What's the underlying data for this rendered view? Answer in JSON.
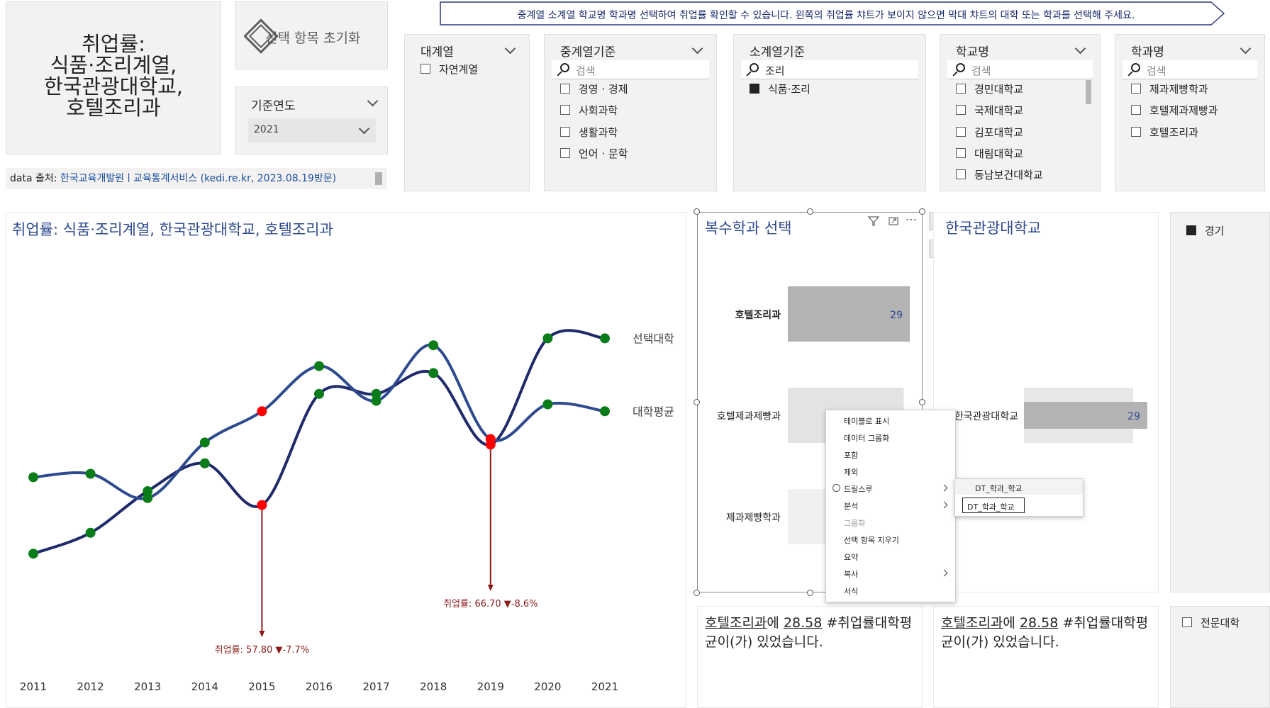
{
  "title_card": {
    "line1": "취업률:",
    "line2": "식품·조리계열,",
    "line3": "한국관광대학교,",
    "line4": "호텔조리과"
  },
  "reset_button": {
    "label": "선택 항목 초기화"
  },
  "year_filter": {
    "title": "기준연도",
    "selected": "2021"
  },
  "banner": {
    "text": "중계열 소계열 학교명 학과명 선택하여 취업률 확인할 수 있습니다. 왼쪽의 취업률 챠트가 보이지 않으면 막대 챠트의 대학 또는 학과를 선택해 주세요."
  },
  "source": {
    "prefix": "data 출처: ",
    "link": "한국교육개발원ㅣ교육통계서비스 (kedi.re.kr, 2023.08.19방문)"
  },
  "slicers": {
    "major": {
      "title": "대계열",
      "items": [
        "자연계열"
      ]
    },
    "middle": {
      "title": "중계열기준",
      "search_placeholder": "검색",
      "items": [
        "경영 · 경제",
        "사회과학",
        "생활과학",
        "언어 · 문학"
      ]
    },
    "minor": {
      "title": "소계열기준",
      "search_value": "조리",
      "items": [
        "식품·조리"
      ]
    },
    "school": {
      "title": "학교명",
      "search_placeholder": "검색",
      "items": [
        "경민대학교",
        "국제대학교",
        "김포대학교",
        "대림대학교",
        "동남보건대학교"
      ]
    },
    "dept": {
      "title": "학과명",
      "search_placeholder": "검색",
      "items": [
        "제과제빵학과",
        "호텔제과제빵과",
        "호텔조리과"
      ]
    }
  },
  "line_chart": {
    "title": "취업률: 식품·조리계열, 한국관광대학교, 호텔조리과"
  },
  "chart_data": [
    {
      "type": "line",
      "title": "취업률: 식품·조리계열, 한국관광대학교, 호텔조리과",
      "x": [
        2011,
        2012,
        2013,
        2014,
        2015,
        2016,
        2017,
        2018,
        2019,
        2020,
        2021
      ],
      "series": [
        {
          "name": "선택대학",
          "color": "#1f2a6b",
          "values": [
            51,
            54,
            60,
            64,
            58,
            74,
            74,
            77,
            66.7,
            82,
            82
          ]
        },
        {
          "name": "대학평균",
          "color": "#2e4a8f",
          "values": [
            62,
            62.5,
            59,
            67,
            71.5,
            78,
            73,
            81,
            67.5,
            72.5,
            71.5
          ]
        }
      ],
      "annotations": [
        {
          "x": 2015,
          "text": "취업률: 57.80 ▼-7.7%"
        },
        {
          "x": 2019,
          "text": "취업률: 66.70 ▼-8.6%"
        }
      ],
      "highlight_points": [
        {
          "x": 2015,
          "color": "#ff0000"
        },
        {
          "x": 2019,
          "color": "#ff0000"
        }
      ],
      "point_color": "#0a7c1a",
      "ylim": [
        40,
        90
      ]
    },
    {
      "type": "bar",
      "title": "복수학과 선택",
      "categories": [
        "호텔조리과",
        "호텔제과제빵과",
        "제과제빵학과"
      ],
      "values": [
        29,
        null,
        null
      ],
      "labels": [
        "29",
        "",
        ""
      ]
    },
    {
      "type": "bar",
      "title": "한국관광대학교",
      "categories": [
        "한국관광대학교"
      ],
      "values": [
        29
      ],
      "labels": [
        "29"
      ]
    }
  ],
  "bar_chart_1": {
    "title": "복수학과 선택"
  },
  "bar_chart_2": {
    "title": "한국관광대학교"
  },
  "right_legend": {
    "item": "경기"
  },
  "bottom_cards": [
    {
      "part1": "호텔조리과",
      "part2": "에 ",
      "part3": "28.58",
      "part4": " #취업률대학평균이(가) 있었습니다."
    },
    {
      "part1": "호텔조리과",
      "part2": "에 ",
      "part3": "28.58",
      "part4": " #취업률대학평균이(가) 있었습니다."
    }
  ],
  "bottom_right": {
    "item": "전문대학"
  },
  "context_menu": {
    "items": [
      "테이블로 표시",
      "데이터 그룹화",
      "포함",
      "제외",
      "드릴스루",
      "분석",
      "그룹화",
      "선택 항목 지우기",
      "요약",
      "복사",
      "서식"
    ],
    "submenu": [
      "DT_학과_학교",
      "DT_학과_학교"
    ]
  },
  "colors": {
    "accent_blue": "#2e4a8f",
    "dark_navy": "#1f2a6b",
    "green": "#0a7c1a",
    "red": "#ff0000",
    "annotation": "#8b1a1a"
  }
}
